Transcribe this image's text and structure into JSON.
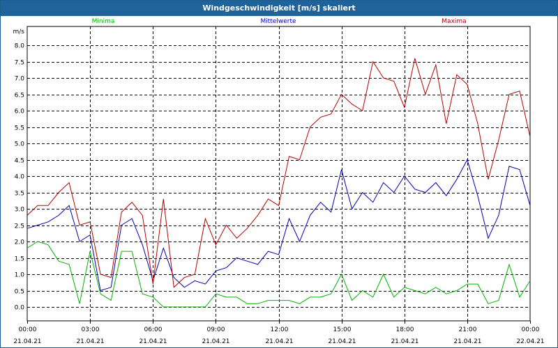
{
  "window": {
    "title": "Windgeschwindigkeit [m/s] skaliert"
  },
  "colors": {
    "title_bar": "#1f639a",
    "minima": "#00b400",
    "mittelwerte": "#0000b4",
    "maxima": "#b40000",
    "grid": "#000000"
  },
  "chart_data": {
    "type": "line",
    "title": "Windgeschwindigkeit [m/s] skaliert",
    "ylabel": "m/s",
    "xlabel": "",
    "ylim": [
      -0.4,
      8.3
    ],
    "yticks": [
      "0.0",
      "0.5",
      "1.0",
      "1.5",
      "2.0",
      "2.5",
      "3.0",
      "3.5",
      "4.0",
      "4.5",
      "5.0",
      "5.5",
      "6.0",
      "6.5",
      "7.0",
      "7.5",
      "8.0"
    ],
    "xticks": [
      {
        "time": "00:00",
        "date": "21.04.21"
      },
      {
        "time": "03:00",
        "date": "21.04.21"
      },
      {
        "time": "06:00",
        "date": "21.04.21"
      },
      {
        "time": "09:00",
        "date": "21.04.21"
      },
      {
        "time": "12:00",
        "date": "21.04.21"
      },
      {
        "time": "15:00",
        "date": "21.04.21"
      },
      {
        "time": "18:00",
        "date": "21.04.21"
      },
      {
        "time": "21:00",
        "date": "21.04.21"
      },
      {
        "time": "00:00",
        "date": "22.04.21"
      }
    ],
    "grid": true,
    "legend_position": "top",
    "x_hours": [
      0,
      0.5,
      1,
      1.5,
      2,
      2.5,
      3,
      3.5,
      4,
      4.5,
      5,
      5.5,
      6,
      6.5,
      7,
      7.5,
      8,
      8.5,
      9,
      9.5,
      10,
      10.5,
      11,
      11.5,
      12,
      12.5,
      13,
      13.5,
      14,
      14.5,
      15,
      15.5,
      16,
      16.5,
      17,
      17.5,
      18,
      18.5,
      19,
      19.5,
      20,
      20.5,
      21,
      21.5,
      22,
      22.5,
      23,
      23.5,
      24
    ],
    "series": [
      {
        "name": "Minima",
        "color": "#00b400",
        "values": [
          1.8,
          2.0,
          1.9,
          1.4,
          1.3,
          0.1,
          1.7,
          0.4,
          0.2,
          1.7,
          1.7,
          0.4,
          0.3,
          0.0,
          0.0,
          0.0,
          0.0,
          0.0,
          0.4,
          0.3,
          0.3,
          0.1,
          0.1,
          0.2,
          0.2,
          0.2,
          0.1,
          0.3,
          0.3,
          0.4,
          1.0,
          0.2,
          0.5,
          0.3,
          1.0,
          0.3,
          0.6,
          0.5,
          0.4,
          0.6,
          0.4,
          0.5,
          0.7,
          0.7,
          0.1,
          0.2,
          1.3,
          0.3,
          0.8
        ]
      },
      {
        "name": "Mittelwerte",
        "color": "#0000b4",
        "values": [
          2.4,
          2.5,
          2.6,
          2.8,
          3.1,
          2.0,
          2.2,
          0.5,
          0.6,
          2.5,
          2.7,
          1.9,
          0.8,
          1.8,
          0.9,
          0.6,
          0.8,
          0.7,
          1.1,
          1.2,
          1.5,
          1.4,
          1.3,
          1.7,
          1.6,
          2.7,
          2.0,
          2.8,
          3.2,
          2.9,
          4.2,
          3.0,
          3.5,
          3.2,
          3.8,
          3.5,
          4.0,
          3.6,
          3.5,
          3.8,
          3.4,
          3.9,
          4.5,
          3.4,
          2.1,
          2.8,
          4.3,
          4.2,
          3.1
        ]
      },
      {
        "name": "Maxima",
        "color": "#b40000",
        "values": [
          2.8,
          3.1,
          3.1,
          3.5,
          3.8,
          2.5,
          2.6,
          1.0,
          0.9,
          2.9,
          3.2,
          2.8,
          0.7,
          3.3,
          0.6,
          0.9,
          1.0,
          2.7,
          1.9,
          2.5,
          2.1,
          2.4,
          2.8,
          3.3,
          3.1,
          4.6,
          4.5,
          5.5,
          5.8,
          5.9,
          6.5,
          6.2,
          6.0,
          7.5,
          7.0,
          6.9,
          6.1,
          7.6,
          6.5,
          7.4,
          5.6,
          7.1,
          6.8,
          5.6,
          3.9,
          5.1,
          6.5,
          6.6,
          5.2
        ]
      }
    ]
  }
}
